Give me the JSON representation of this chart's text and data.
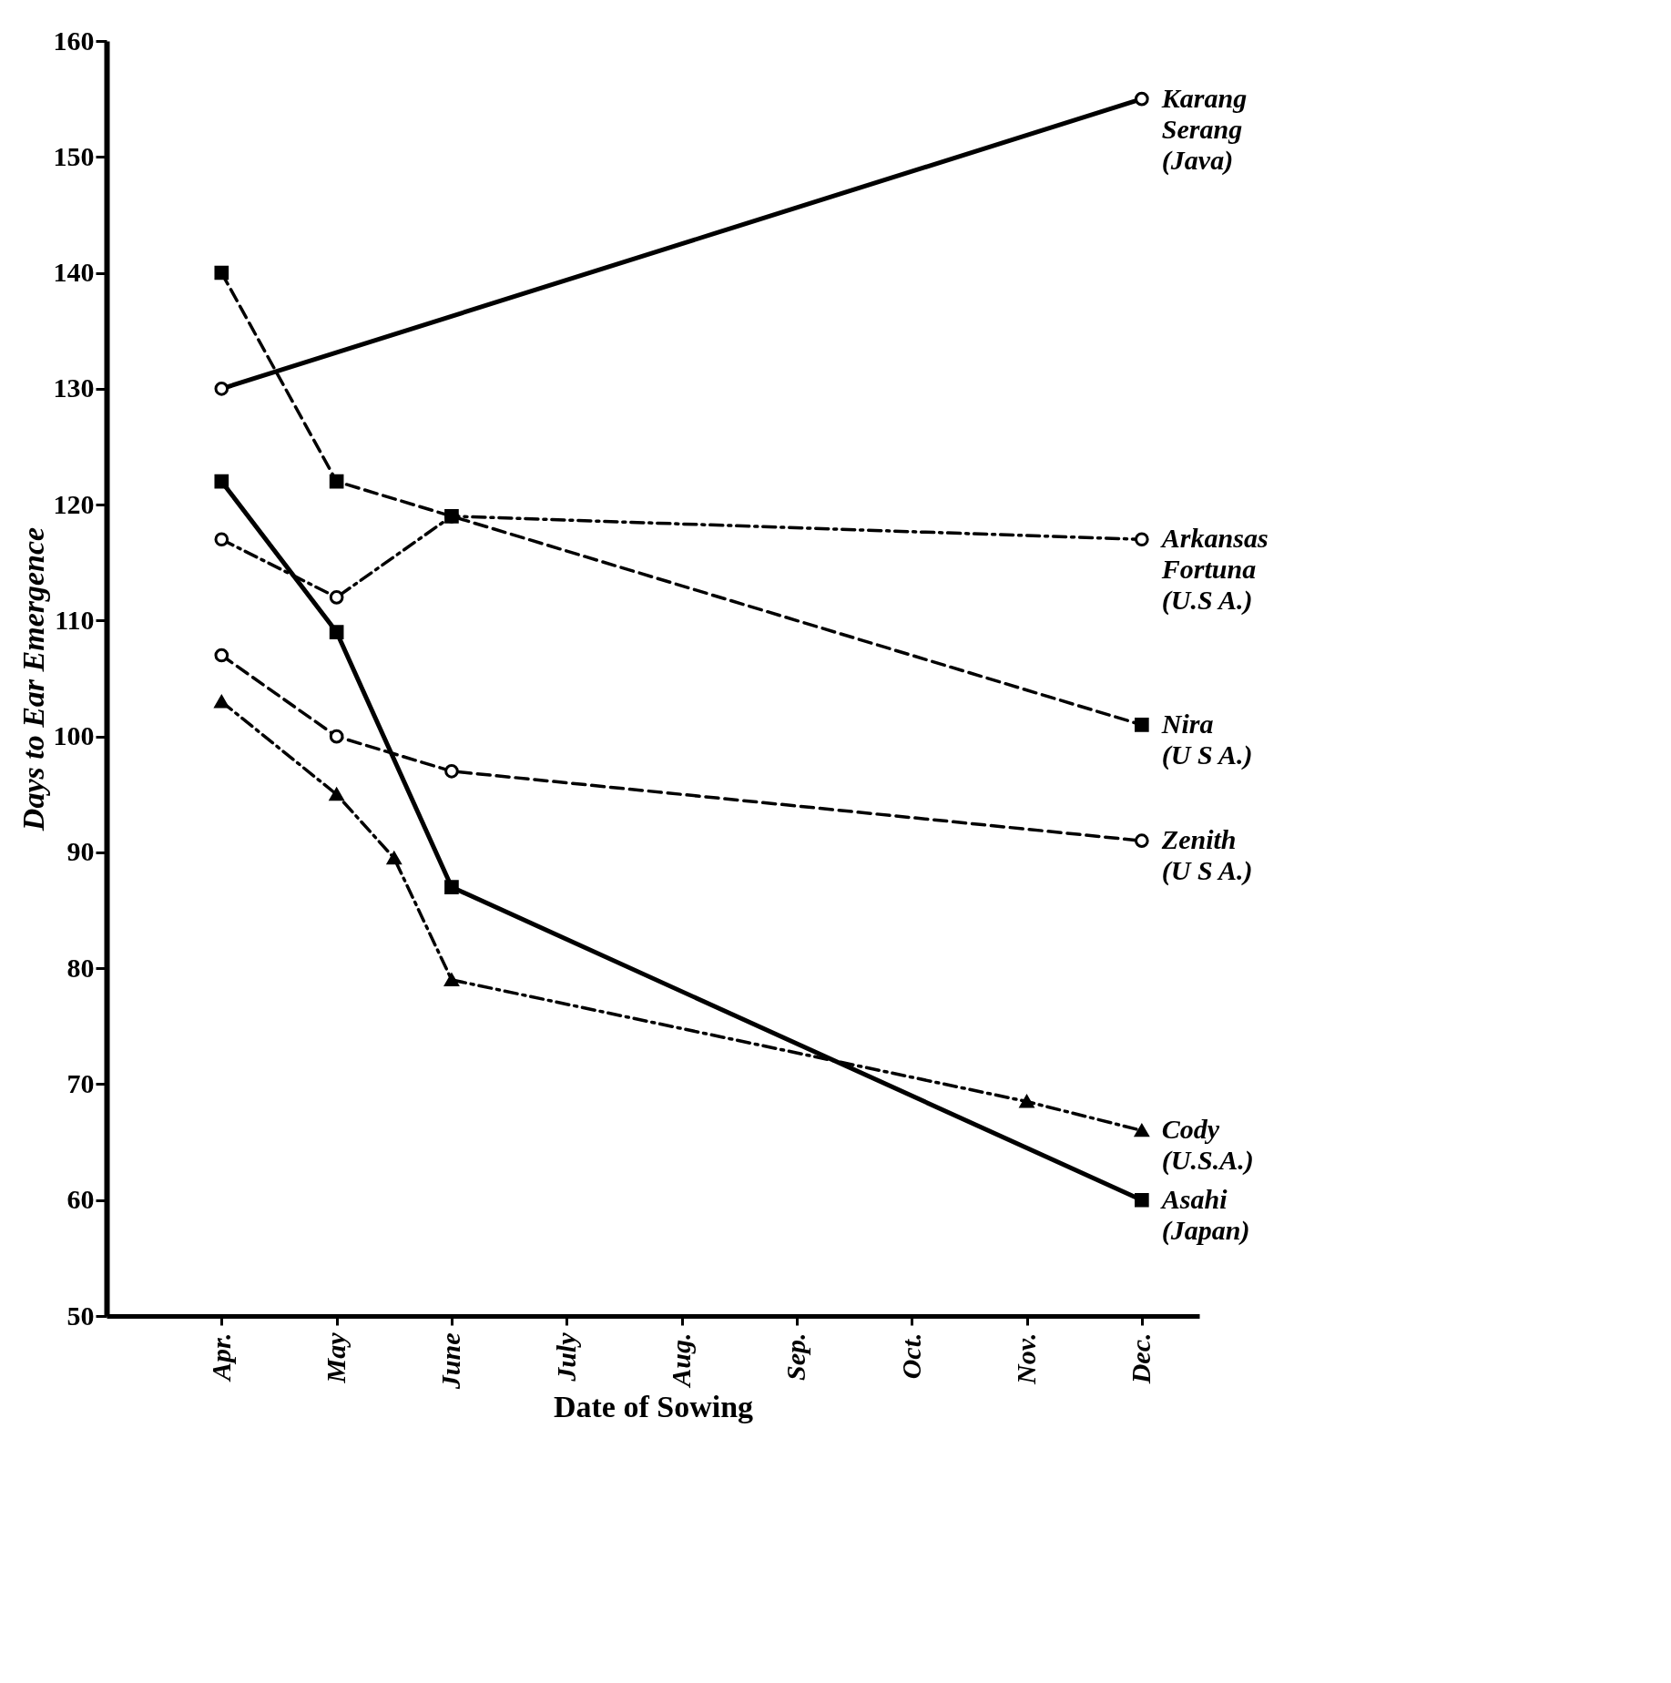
{
  "chart_data": {
    "type": "line",
    "xlabel": "Date of Sowing",
    "ylabel": "Days to Ear Emergence",
    "categories": [
      "Apr.",
      null,
      "May",
      null,
      "June",
      null,
      "July",
      null,
      "Aug.",
      null,
      "Sep.",
      null,
      "Oct.",
      null,
      "Nov.",
      null,
      "Dec."
    ],
    "ylim": [
      50,
      160
    ],
    "yticks": [
      50,
      60,
      70,
      80,
      90,
      100,
      110,
      120,
      130,
      140,
      150,
      160
    ],
    "grid": false,
    "series": [
      {
        "name": "Karang\nSerang\n(Java)",
        "color": "#000000",
        "values": [
          130,
          null,
          null,
          null,
          null,
          null,
          null,
          null,
          null,
          null,
          null,
          null,
          null,
          null,
          null,
          null,
          155
        ],
        "line_style": "solid",
        "marker": "circle"
      },
      {
        "name": "Arkansas\nFortuna\n(U.S A.)",
        "color": "#000000",
        "values": [
          117,
          null,
          112,
          null,
          119,
          null,
          null,
          null,
          null,
          null,
          null,
          null,
          null,
          null,
          null,
          null,
          117
        ],
        "line_style": "dashdot",
        "marker": "circle"
      },
      {
        "name": "Nira\n(U S A.)",
        "color": "#000000",
        "values": [
          140,
          null,
          122,
          null,
          119,
          null,
          null,
          null,
          null,
          null,
          null,
          null,
          null,
          null,
          null,
          null,
          101
        ],
        "line_style": "dashed",
        "marker": "square"
      },
      {
        "name": "Zenith\n(U S A.)",
        "color": "#000000",
        "values": [
          107,
          null,
          100,
          null,
          97,
          null,
          null,
          null,
          null,
          null,
          null,
          null,
          null,
          null,
          null,
          null,
          91
        ],
        "line_style": "dashed",
        "marker": "circle"
      },
      {
        "name": "Cody\n(U.S.A.)",
        "color": "#000000",
        "values": [
          103,
          null,
          95,
          89.5,
          79,
          null,
          null,
          null,
          null,
          null,
          null,
          null,
          null,
          null,
          68.5,
          null,
          66
        ],
        "line_style": "dashdot",
        "marker": "triangle"
      },
      {
        "name": "Asahi\n(Japan)",
        "color": "#000000",
        "values": [
          122,
          null,
          109,
          null,
          87,
          null,
          null,
          null,
          null,
          null,
          null,
          null,
          null,
          null,
          null,
          null,
          60
        ],
        "line_style": "solid",
        "marker": "square"
      }
    ]
  }
}
